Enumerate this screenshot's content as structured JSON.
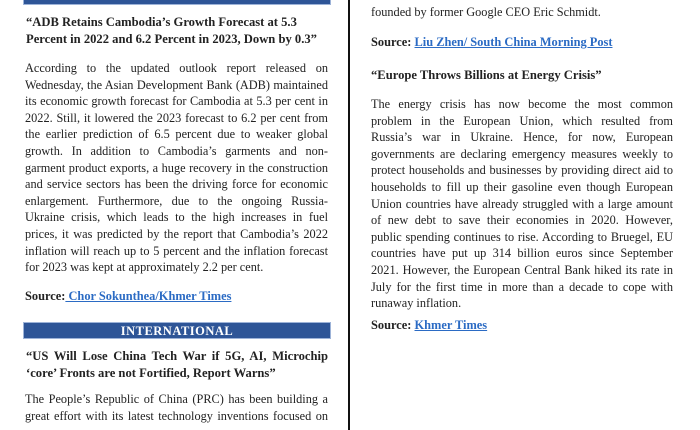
{
  "colors": {
    "section_bar": "#2e5597",
    "link": "#2b6bc4"
  },
  "left": {
    "article1": {
      "title": "“ADB Retains Cambodia’s Growth Forecast at 5.3 Percent in 2022 and 6.2 Percent in 2023, Down by 0.3”",
      "body": "According to the updated outlook report released on Wednesday, the Asian Development Bank (ADB) maintained its economic growth forecast for Cambodia at 5.3 per cent in 2022. Still, it lowered the 2023 forecast to 6.2 per cent from the earlier prediction of 6.5 percent due to weaker global growth. In addition to Cambodia’s garments and non-garment product exports, a huge recovery in the construction and service sectors has been the driving force for economic enlargement. Furthermore, due to the ongoing Russia-Ukraine crisis, which leads to the high increases in fuel prices, it was predicted by the report that Cambodia’s 2022 inflation will reach up to 5 percent and the inflation forecast for 2023 was kept at approximately 2.2 per cent.",
      "source_label": "Source:",
      "source_link": " Chor Sokunthea/Khmer Times"
    },
    "section_title": "INTERNATIONAL",
    "article2": {
      "title": "“US Will Lose China Tech War if 5G, AI, Microchip ‘core’ Fronts are not Fortified, Report Warns”",
      "body": "The People’s Republic of China (PRC) has been building a great effort with its latest technology inventions focused on"
    }
  },
  "right": {
    "continued": "founded by former Google CEO Eric Schmidt.",
    "source1_label": "Source:",
    "source1_link": "Liu Zhen/ South China Morning Post",
    "article3": {
      "title": "“Europe Throws Billions at Energy Crisis”",
      "body": "The energy crisis has now become the most common problem in the European Union, which resulted from Russia’s war in Ukraine. Hence, for now, European governments are declaring emergency measures weekly to protect households and businesses by providing direct aid to households to fill up their gasoline even though European Union countries have already struggled with a large amount of new debt to save their economies in 2020. However, public spending continues to rise. According to Bruegel, EU countries have put up 314 billion euros since September 2021. However, the European Central Bank hiked its rate in July for the first time in more than a decade to cope with runaway inflation.",
      "source_label": "Source:",
      "source_link": "Khmer Times"
    }
  }
}
